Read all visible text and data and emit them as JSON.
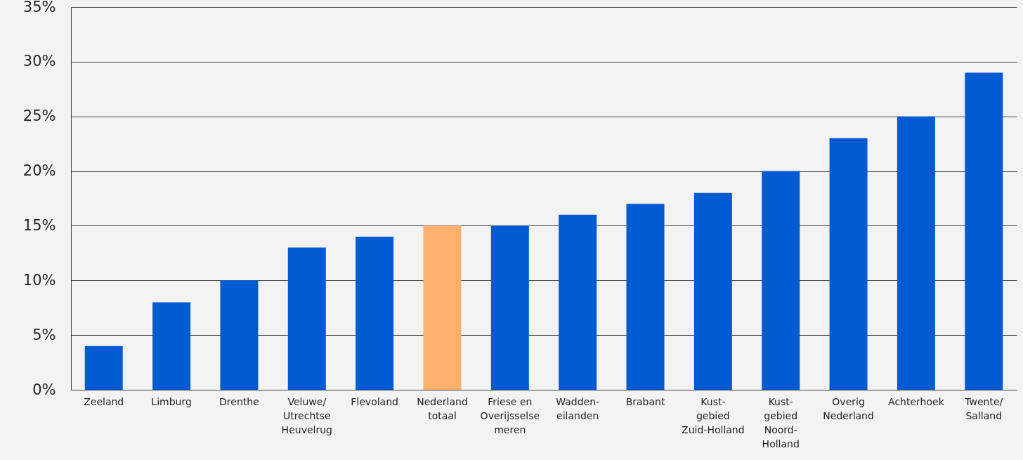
{
  "chart_data": {
    "type": "bar",
    "categories": [
      "Zeeland",
      "Limburg",
      "Drenthe",
      "Veluwe/\nUtrechtse\nHeuvelrug",
      "Flevoland",
      "Nederland\ntotaal",
      "Friese en\nOverijsselse\nmeren",
      "Wadden-\neilanden",
      "Brabant",
      "Kust-\ngebied\nZuid-Holland",
      "Kust-\ngebied\nNoord-\nHolland",
      "Overig\nNederland",
      "Achterhoek",
      "Twente/\nSalland"
    ],
    "values": [
      4,
      8,
      10,
      13,
      14,
      15,
      15,
      16,
      17,
      18,
      20,
      23,
      25,
      29
    ],
    "colors": [
      "#005ad2",
      "#005ad2",
      "#005ad2",
      "#005ad2",
      "#005ad2",
      "#ffb06e",
      "#005ad2",
      "#005ad2",
      "#005ad2",
      "#005ad2",
      "#005ad2",
      "#005ad2",
      "#005ad2",
      "#005ad2"
    ],
    "ylim": [
      0,
      35
    ],
    "yticks": [
      {
        "value": 0,
        "label": "0%"
      },
      {
        "value": 5,
        "label": "5%"
      },
      {
        "value": 10,
        "label": "10%"
      },
      {
        "value": 15,
        "label": "15%"
      },
      {
        "value": 20,
        "label": "20%"
      },
      {
        "value": 25,
        "label": "25%"
      },
      {
        "value": 30,
        "label": "30%"
      },
      {
        "value": 35,
        "label": "35%"
      }
    ],
    "grid": "y"
  }
}
